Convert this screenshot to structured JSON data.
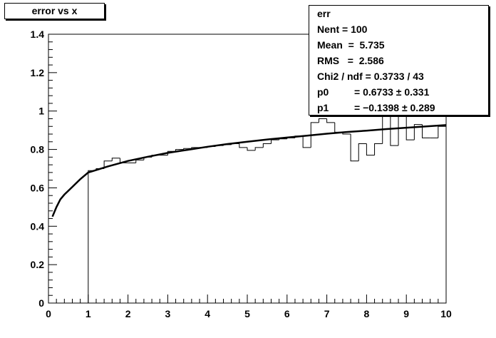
{
  "title": "error vs x",
  "stats": {
    "name": "err",
    "rows": [
      {
        "label": "Nent = 100"
      },
      {
        "label": "Mean  =  5.735"
      },
      {
        "label": "RMS   =  2.586"
      },
      {
        "label": "Chi2 / ndf = 0.3733 / 43"
      },
      {
        "label": "p0",
        "value": "= 0.6733 ± 0.331"
      },
      {
        "label": "p1",
        "value": "= −0.1398 ± 0.289"
      }
    ]
  },
  "chart_data": {
    "type": "bar",
    "title": "error vs x",
    "xlim": [
      0,
      10
    ],
    "ylim": [
      0,
      1.4
    ],
    "x_ticks": [
      "0",
      "1",
      "2",
      "3",
      "4",
      "5",
      "6",
      "7",
      "8",
      "9",
      "10"
    ],
    "y_ticks": [
      "0",
      "0.2",
      "0.4",
      "0.6",
      "0.8",
      "1",
      "1.2",
      "1.4"
    ],
    "bin_width": 0.2,
    "histogram": [
      {
        "x0": 1.0,
        "y": 0.69
      },
      {
        "x0": 1.2,
        "y": 0.7
      },
      {
        "x0": 1.4,
        "y": 0.74
      },
      {
        "x0": 1.6,
        "y": 0.755
      },
      {
        "x0": 1.8,
        "y": 0.73
      },
      {
        "x0": 2.0,
        "y": 0.73
      },
      {
        "x0": 2.2,
        "y": 0.745
      },
      {
        "x0": 2.4,
        "y": 0.76
      },
      {
        "x0": 2.6,
        "y": 0.77
      },
      {
        "x0": 2.8,
        "y": 0.77
      },
      {
        "x0": 3.0,
        "y": 0.79
      },
      {
        "x0": 3.2,
        "y": 0.8
      },
      {
        "x0": 3.4,
        "y": 0.805
      },
      {
        "x0": 3.6,
        "y": 0.81
      },
      {
        "x0": 3.8,
        "y": 0.81
      },
      {
        "x0": 4.0,
        "y": 0.815
      },
      {
        "x0": 4.2,
        "y": 0.82
      },
      {
        "x0": 4.4,
        "y": 0.825
      },
      {
        "x0": 4.6,
        "y": 0.83
      },
      {
        "x0": 4.8,
        "y": 0.81
      },
      {
        "x0": 5.0,
        "y": 0.795
      },
      {
        "x0": 5.2,
        "y": 0.81
      },
      {
        "x0": 5.4,
        "y": 0.83
      },
      {
        "x0": 5.6,
        "y": 0.85
      },
      {
        "x0": 5.8,
        "y": 0.855
      },
      {
        "x0": 6.0,
        "y": 0.86
      },
      {
        "x0": 6.2,
        "y": 0.87
      },
      {
        "x0": 6.4,
        "y": 0.81
      },
      {
        "x0": 6.6,
        "y": 0.94
      },
      {
        "x0": 6.8,
        "y": 0.96
      },
      {
        "x0": 7.0,
        "y": 0.94
      },
      {
        "x0": 7.2,
        "y": 0.89
      },
      {
        "x0": 7.4,
        "y": 0.88
      },
      {
        "x0": 7.6,
        "y": 0.74
      },
      {
        "x0": 7.8,
        "y": 0.83
      },
      {
        "x0": 8.0,
        "y": 0.77
      },
      {
        "x0": 8.2,
        "y": 0.83
      },
      {
        "x0": 8.4,
        "y": 1.0
      },
      {
        "x0": 8.6,
        "y": 0.82
      },
      {
        "x0": 8.8,
        "y": 1.0
      },
      {
        "x0": 9.0,
        "y": 0.85
      },
      {
        "x0": 9.2,
        "y": 0.93
      },
      {
        "x0": 9.4,
        "y": 0.86
      },
      {
        "x0": 9.6,
        "y": 0.86
      },
      {
        "x0": 9.8,
        "y": 0.92
      }
    ],
    "fit_curve": {
      "x": [
        0.1,
        0.2,
        0.3,
        0.4,
        0.6,
        0.8,
        1.0,
        1.5,
        2.0,
        2.5,
        3.0,
        3.5,
        4.0,
        4.5,
        5.0,
        5.5,
        6.0,
        6.5,
        7.0,
        7.5,
        8.0,
        8.5,
        9.0,
        9.5,
        10.0
      ],
      "y": [
        0.45,
        0.5,
        0.54,
        0.565,
        0.605,
        0.645,
        0.68,
        0.712,
        0.74,
        0.762,
        0.782,
        0.798,
        0.814,
        0.828,
        0.84,
        0.852,
        0.862,
        0.872,
        0.882,
        0.891,
        0.898,
        0.906,
        0.913,
        0.92,
        0.927
      ]
    },
    "grid": false,
    "legend": "top-right"
  }
}
